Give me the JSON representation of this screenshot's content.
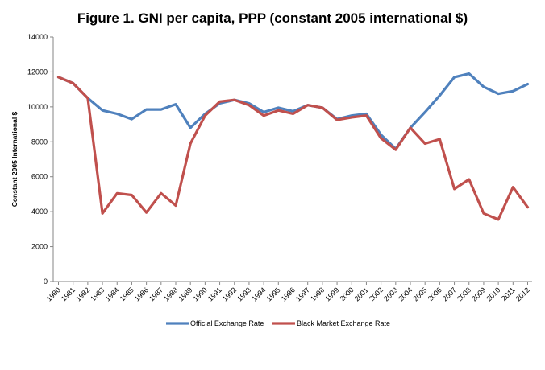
{
  "chart_data": {
    "type": "line",
    "title": "Figure 1. GNI per capita, PPP (constant 2005 international $)",
    "xlabel": "",
    "ylabel": "Constant 2005 International $",
    "ylim": [
      0,
      14000
    ],
    "yticks": [
      0,
      2000,
      4000,
      6000,
      8000,
      10000,
      12000,
      14000
    ],
    "grid": false,
    "legend_position": "bottom",
    "x": [
      "1980",
      "1981",
      "1982",
      "1983",
      "1984",
      "1985",
      "1986",
      "1987",
      "1988",
      "1989",
      "1990",
      "1991",
      "1992",
      "1993",
      "1994",
      "1995",
      "1996",
      "1997",
      "1998",
      "1999",
      "2000",
      "2001",
      "2002",
      "2003",
      "2004",
      "2005",
      "2006",
      "2007",
      "2008",
      "2009",
      "2010",
      "2011",
      "2012"
    ],
    "series": [
      {
        "name": "Official Exchange Rate",
        "color": "#4F81BD",
        "values": [
          11700,
          11350,
          10500,
          9800,
          9600,
          9300,
          9850,
          9850,
          10150,
          8800,
          9600,
          10200,
          10400,
          10200,
          9700,
          9950,
          9750,
          10100,
          9950,
          9300,
          9500,
          9600,
          8400,
          7600,
          8800,
          9700,
          10650,
          11700,
          11900,
          11150,
          10750,
          10900,
          11300
        ]
      },
      {
        "name": "Black Market Exchange Rate",
        "color": "#C0504D",
        "values": [
          11700,
          11350,
          10500,
          3900,
          5050,
          4950,
          3950,
          5050,
          4350,
          7900,
          9500,
          10300,
          10400,
          10100,
          9500,
          9800,
          9600,
          10100,
          9950,
          9250,
          9400,
          9500,
          8200,
          7550,
          8800,
          7900,
          8150,
          5300,
          5850,
          3900,
          3550,
          5400,
          4250
        ]
      }
    ]
  }
}
